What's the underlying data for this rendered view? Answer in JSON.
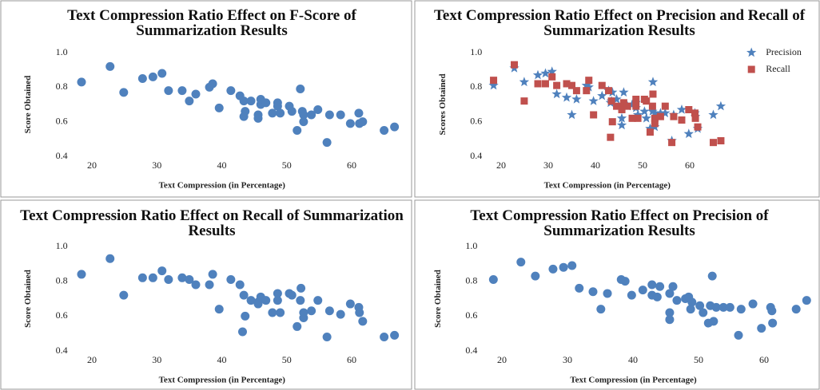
{
  "chart_data": [
    {
      "type": "scatter",
      "title": "Text Compression Ratio Effect on F-Score of Summarization Results",
      "x_label": "Text Compression (in Percentage)",
      "y_label": "Score Obtained",
      "x": [
        18.4,
        22.8,
        24.9,
        27.8,
        29.4,
        30.8,
        31.8,
        33.9,
        35,
        36,
        38.1,
        38.6,
        39.6,
        41.4,
        42.8,
        43.4,
        43.6,
        43.4,
        44.5,
        45.6,
        45.6,
        46,
        46,
        46.8,
        47.8,
        48.6,
        48.6,
        49,
        50.4,
        50.8,
        51.6,
        52.1,
        52.4,
        52.6,
        52.6,
        53.8,
        54.8,
        56.2,
        56.6,
        58.3,
        59.8,
        61.1,
        61.2,
        61.7,
        65,
        66.6
      ],
      "series": [
        {
          "name": null,
          "color": "#4f81bd",
          "marker": "circle",
          "values": [
            0.83,
            0.92,
            0.77,
            0.85,
            0.86,
            0.88,
            0.78,
            0.78,
            0.72,
            0.76,
            0.8,
            0.82,
            0.68,
            0.78,
            0.75,
            0.72,
            0.66,
            0.63,
            0.72,
            0.64,
            0.62,
            0.73,
            0.7,
            0.71,
            0.65,
            0.69,
            0.71,
            0.65,
            0.69,
            0.66,
            0.55,
            0.79,
            0.66,
            0.6,
            0.64,
            0.64,
            0.67,
            0.48,
            0.64,
            0.64,
            0.59,
            0.65,
            0.59,
            0.6,
            0.55,
            0.57
          ]
        }
      ],
      "xlim": [
        17,
        68
      ],
      "xticks": [
        20,
        30,
        40,
        50,
        60
      ],
      "ylim": [
        0.4,
        1.0
      ],
      "yticks": [
        {
          "value": 1.0,
          "label": "1.0"
        },
        0.8,
        0.6,
        0.4
      ],
      "grid": false
    },
    {
      "type": "scatter",
      "title": "Text Compression Ratio Effect on Precision and Recall of Summarization Results",
      "x_label": "Text Compression (in Percentage)",
      "y_label": "Scores Obtained",
      "x": [
        18.4,
        22.8,
        24.9,
        27.8,
        29.4,
        30.8,
        31.8,
        33.9,
        35,
        36,
        38.1,
        38.6,
        39.6,
        41.4,
        42.8,
        43.4,
        43.2,
        43.6,
        44.5,
        45.6,
        45.6,
        46,
        46.8,
        47.8,
        48.6,
        48.6,
        49,
        50.4,
        50.8,
        51.6,
        52.1,
        52.2,
        52.6,
        52.6,
        53.8,
        54.8,
        56.2,
        56.6,
        58.3,
        59.8,
        61.1,
        61.2,
        61.7,
        65,
        66.6
      ],
      "series": [
        {
          "name": "Precision",
          "color": "#4f81bd",
          "marker": "star",
          "values": [
            0.81,
            0.91,
            0.83,
            0.87,
            0.88,
            0.89,
            0.76,
            0.74,
            0.64,
            0.73,
            0.81,
            0.8,
            0.72,
            0.75,
            0.78,
            0.72,
            0.71,
            0.77,
            0.73,
            0.62,
            0.58,
            0.77,
            0.69,
            0.7,
            0.71,
            0.68,
            0.64,
            0.66,
            0.62,
            0.56,
            0.66,
            0.83,
            0.57,
            0.65,
            0.65,
            0.65,
            0.49,
            0.64,
            0.67,
            0.53,
            0.65,
            0.63,
            0.56,
            0.64,
            0.69
          ]
        },
        {
          "name": "Recall",
          "color": "#c0504d",
          "marker": "square",
          "values": [
            0.84,
            0.93,
            0.72,
            0.82,
            0.82,
            0.86,
            0.81,
            0.82,
            0.81,
            0.78,
            0.78,
            0.84,
            0.64,
            0.81,
            0.78,
            0.72,
            0.51,
            0.6,
            0.69,
            0.67,
            0.68,
            0.71,
            0.69,
            0.62,
            0.69,
            0.73,
            0.62,
            0.73,
            0.72,
            0.54,
            0.69,
            0.76,
            0.59,
            0.62,
            0.63,
            0.69,
            0.48,
            0.63,
            0.61,
            0.67,
            0.65,
            0.62,
            0.57,
            0.48,
            0.49
          ]
        }
      ],
      "xlim": [
        17,
        68
      ],
      "xticks": [
        20,
        30,
        40,
        50,
        60
      ],
      "ylim": [
        0.4,
        1.0
      ],
      "yticks": [
        {
          "value": 1.0,
          "label": "1.0"
        },
        0.8,
        0.6,
        0.4
      ],
      "grid": false,
      "legend": "right"
    },
    {
      "type": "scatter",
      "title": "Text Compression Ratio Effect on Recall of Summarization Results",
      "x_label": "Text Compression (in Percentage)",
      "y_label": "Score Obtained",
      "x": [
        18.4,
        22.8,
        24.9,
        27.8,
        29.4,
        30.8,
        31.8,
        33.9,
        35,
        36,
        38.1,
        38.6,
        39.6,
        41.4,
        42.8,
        43.4,
        43.2,
        43.6,
        44.5,
        45.6,
        45.6,
        46,
        46.8,
        47.8,
        48.6,
        48.6,
        49,
        50.4,
        50.8,
        51.6,
        52.1,
        52.2,
        52.6,
        52.6,
        53.8,
        54.8,
        56.2,
        56.6,
        58.3,
        59.8,
        61.1,
        61.2,
        61.7,
        65,
        66.6
      ],
      "series": [
        {
          "name": null,
          "color": "#4f81bd",
          "marker": "circle",
          "values": [
            0.84,
            0.93,
            0.72,
            0.82,
            0.82,
            0.86,
            0.81,
            0.82,
            0.81,
            0.78,
            0.78,
            0.84,
            0.64,
            0.81,
            0.78,
            0.72,
            0.51,
            0.6,
            0.69,
            0.67,
            0.68,
            0.71,
            0.69,
            0.62,
            0.69,
            0.73,
            0.62,
            0.73,
            0.72,
            0.54,
            0.69,
            0.76,
            0.59,
            0.62,
            0.63,
            0.69,
            0.48,
            0.63,
            0.61,
            0.67,
            0.65,
            0.62,
            0.57,
            0.48,
            0.49
          ]
        }
      ],
      "xlim": [
        17,
        68
      ],
      "xticks": [
        20,
        30,
        40,
        50,
        60
      ],
      "ylim": [
        0.4,
        1.0
      ],
      "yticks": [
        {
          "value": 1.0,
          "label": "1.0"
        },
        0.8,
        0.6,
        0.4
      ],
      "grid": false
    },
    {
      "type": "scatter",
      "title": "Text Compression Ratio Effect on Precision of Summarization Results",
      "x_label": "Text Compression (in Percentage)",
      "y_label": "Score Obtained",
      "x": [
        18.7,
        22.9,
        25.1,
        27.8,
        29.4,
        30.7,
        31.8,
        33.9,
        35.1,
        36.1,
        38.2,
        38.8,
        39.8,
        41.5,
        42.9,
        42.9,
        43.7,
        44.1,
        45.6,
        45.6,
        45.6,
        46.1,
        46.7,
        48,
        48.5,
        49,
        48.8,
        50.2,
        50.7,
        51.5,
        51.8,
        52.1,
        52.3,
        52.7,
        53.8,
        54.8,
        56.1,
        56.5,
        58.3,
        59.6,
        61,
        61.2,
        61.3,
        64.9,
        66.5
      ],
      "series": [
        {
          "name": null,
          "color": "#4f81bd",
          "marker": "circle",
          "values": [
            0.81,
            0.91,
            0.83,
            0.87,
            0.88,
            0.89,
            0.76,
            0.74,
            0.64,
            0.73,
            0.81,
            0.8,
            0.72,
            0.75,
            0.78,
            0.72,
            0.71,
            0.77,
            0.73,
            0.62,
            0.58,
            0.77,
            0.69,
            0.7,
            0.71,
            0.68,
            0.64,
            0.66,
            0.62,
            0.56,
            0.66,
            0.83,
            0.57,
            0.65,
            0.65,
            0.65,
            0.49,
            0.64,
            0.67,
            0.53,
            0.65,
            0.63,
            0.56,
            0.64,
            0.69
          ]
        }
      ],
      "xlim": [
        17,
        68
      ],
      "xticks": [
        20,
        30,
        40,
        50,
        60
      ],
      "ylim": [
        0.4,
        1.0
      ],
      "yticks": [
        {
          "value": 1.0,
          "label": "1.0"
        },
        0.8,
        0.6,
        0.4
      ],
      "grid": false
    }
  ]
}
